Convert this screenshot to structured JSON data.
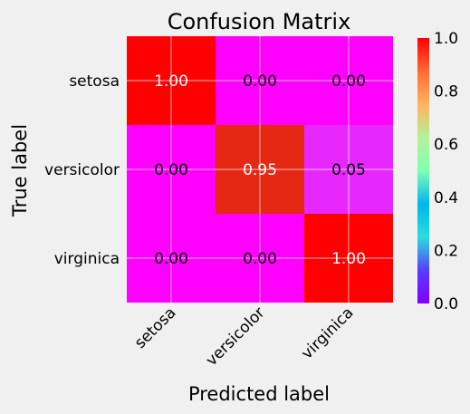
{
  "chart_data": {
    "type": "heatmap",
    "title": "Confusion Matrix",
    "xlabel": "Predicted label",
    "ylabel": "True label",
    "rows": [
      "setosa",
      "versicolor",
      "virginica"
    ],
    "cols": [
      "setosa",
      "versicolor",
      "virginica"
    ],
    "values": [
      [
        1.0,
        0.0,
        0.0
      ],
      [
        0.0,
        0.95,
        0.05
      ],
      [
        0.0,
        0.0,
        1.0
      ]
    ],
    "cell_labels": [
      [
        "1.00",
        "0.00",
        "0.00"
      ],
      [
        "0.00",
        "0.95",
        "0.05"
      ],
      [
        "0.00",
        "0.00",
        "1.00"
      ]
    ],
    "colormap": "rainbow",
    "colorbar": {
      "range": [
        0,
        1
      ],
      "ticks": [
        "0.0",
        "0.2",
        "0.4",
        "0.6",
        "0.8",
        "1.0"
      ]
    },
    "grid": true
  }
}
